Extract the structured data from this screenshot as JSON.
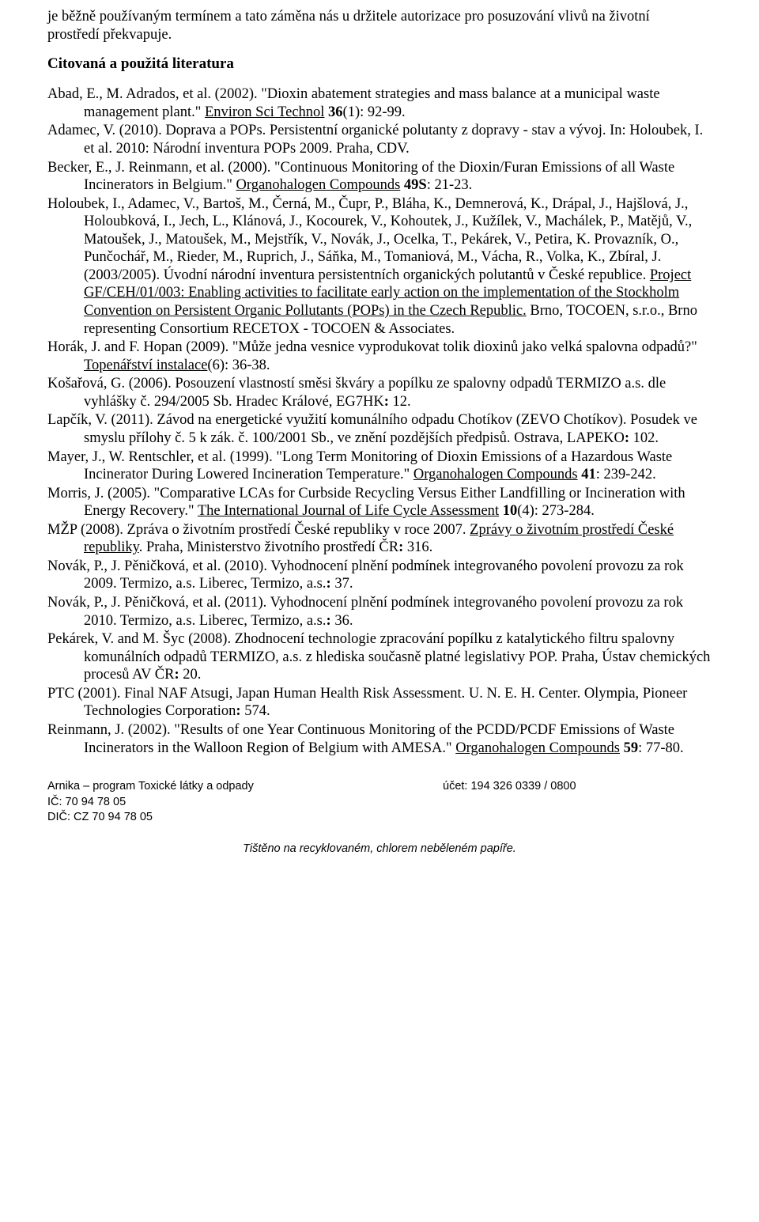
{
  "intro_line1": "je běžně používaným termínem a tato záměna nás u držitele autorizace pro posuzování vlivů na životní",
  "intro_line2": "prostředí překvapuje.",
  "section_heading": "Citovaná a použitá literatura",
  "refs": {
    "r1a": "Abad, E., M. Adrados, et al. (2002). \"Dioxin abatement strategies and mass balance at a municipal waste management plant.\" ",
    "r1u": "Environ Sci Technol",
    "r1b": " ",
    "r1bold": "36",
    "r1c": "(1): 92-99.",
    "r2a": "Adamec, V. (2010). Doprava a POPs. Persistentní organické polutanty z dopravy - stav a vývoj. In: Holoubek, I. et al. 2010: Národní inventura POPs 2009. Praha, CDV.",
    "r3a": "Becker, E., J. Reinmann, et al. (2000). \"Continuous Monitoring of the Dioxin/Furan Emissions of all Waste Incinerators in Belgium.\" ",
    "r3u": "Organohalogen Compounds",
    "r3b": " ",
    "r3bold": "49S",
    "r3c": ": 21-23.",
    "r4a": "Holoubek, I., Adamec, V., Bartoš, M., Černá, M., Čupr, P., Bláha, K., Demnerová, K., Drápal, J., Hajšlová, J., Holoubková, I., Jech, L., Klánová, J., Kocourek, V., Kohoutek, J., Kužílek, V., Machálek, P., Matějů, V., Matoušek, J., Matoušek, M., Mejstřík, V., Novák, J., Ocelka, T., Pekárek, V., Petira, K. Provazník, O., Punčochář, M., Rieder, M., Ruprich, J., Sáňka, M., Tomaniová, M., Vácha, R., Volka, K., Zbíral, J. (2003/2005). Úvodní národní inventura persistentních organických polutantů v České republice. ",
    "r4u": "Project GF/CEH/01/003: Enabling activities to facilitate early action on the implementation of the Stockholm Convention on Persistent Organic Pollutants (POPs) in the Czech Republic.",
    "r4b": " Brno, TOCOEN, s.r.o., Brno representing Consortium RECETOX - TOCOEN & Associates.",
    "r5a": "Horák, J. and F. Hopan (2009). \"Může jedna vesnice vyprodukovat tolik dioxinů jako velká spalovna odpadů?\" ",
    "r5u": "Topenářství instalace",
    "r5b": "(6): 36-38.",
    "r6a": "Košařová, G. (2006). Posouzení vlastností směsi škváry a popílku ze spalovny odpadů TERMIZO a.s. dle vyhlášky č. 294/2005 Sb. Hradec Králové, EG7HK",
    "r6bold": ":",
    "r6c": " 12.",
    "r7a": "Lapčík, V. (2011). Závod na energetické využití komunálního odpadu Chotíkov (ZEVO Chotíkov). Posudek ve smyslu přílohy č. 5 k zák. č. 100/2001 Sb., ve znění pozdějších předpisů. Ostrava, LAPEKO",
    "r7bold": ":",
    "r7c": " 102.",
    "r8a": "Mayer, J., W. Rentschler, et al. (1999). \"Long Term Monitoring of Dioxin Emissions of a Hazardous Waste Incinerator During Lowered Incineration Temperature.\" ",
    "r8u": "Organohalogen Compounds",
    "r8b": " ",
    "r8bold": "41",
    "r8c": ": 239-242.",
    "r9a": "Morris, J. (2005). \"Comparative LCAs for Curbside Recycling Versus Either Landfilling or Incineration with Energy Recovery.\" ",
    "r9u": "The International Journal of Life Cycle Assessment",
    "r9b": " ",
    "r9bold": "10",
    "r9c": "(4): 273-284.",
    "r10a": "MŽP (2008). Zpráva o životním prostředí České republiky v roce 2007. ",
    "r10u": "Zprávy o životním prostředí České republiky",
    "r10b": ". Praha, Ministerstvo životního prostředí ČR",
    "r10bold": ":",
    "r10c": " 316.",
    "r11a": "Novák, P., J. Pěničková, et al. (2010). Vyhodnocení plnění podmínek integrovaného povolení provozu za rok 2009. Termizo, a.s. Liberec, Termizo, a.s.",
    "r11bold": ":",
    "r11c": " 37.",
    "r12a": "Novák, P., J. Pěničková, et al. (2011). Vyhodnocení plnění podmínek integrovaného povolení provozu za rok 2010. Termizo, a.s. Liberec, Termizo, a.s.",
    "r12bold": ":",
    "r12c": " 36.",
    "r13a": "Pekárek, V. and M. Šyc (2008). Zhodnocení technologie zpracování popílku z katalytického filtru spalovny komunálních odpadů TERMIZO, a.s. z hlediska současně platné legislativy POP. Praha, Ústav chemických procesů AV ČR",
    "r13bold": ":",
    "r13c": " 20.",
    "r14a": "PTC (2001). Final NAF Atsugi, Japan Human Health Risk Assessment. U. N. E. H. Center. Olympia, Pioneer Technologies Corporation",
    "r14bold": ":",
    "r14c": " 574.",
    "r15a": "Reinmann, J. (2002). \"Results of one Year Continuous Monitoring of the PCDD/PCDF Emissions of Waste Incinerators in the Walloon Region of Belgium with AMESA.\" ",
    "r15u": "Organohalogen Compounds",
    "r15b": " ",
    "r15bold": "59",
    "r15c": ": 77-80."
  },
  "footer": {
    "org": "Arnika – program Toxické látky a odpady",
    "ic": "IČ: 70 94 78 05",
    "dic": "DIČ: CZ 70 94 78 05",
    "acct": "účet: 194 326 0339 / 0800",
    "tisteno": "Tištěno na recyklovaném, chlorem neběleném papíře."
  }
}
